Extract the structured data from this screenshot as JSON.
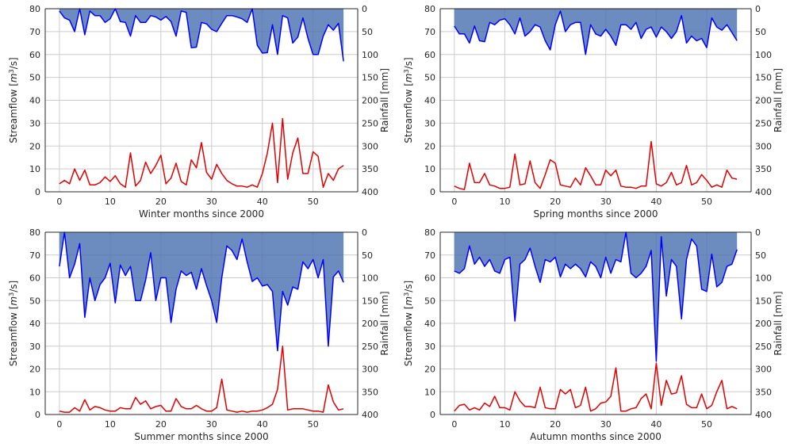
{
  "figure": {
    "title": ""
  },
  "colors": {
    "streamflow": "#0000ff",
    "rainfall_line": "#e00000",
    "rainfall_fill": "#4c72b0",
    "grid": "#cccccc",
    "axis": "#262626"
  },
  "chart_data": [
    {
      "type": "line",
      "xlabel": "Winter months since 2000",
      "ylabel_left": "Streamflow [$m^3$/s]",
      "ylabel_right": "Rainfall [mm]",
      "xlim": [
        -2.8,
        58.8
      ],
      "ylim_left": [
        0,
        80
      ],
      "ylim_right_inverted": [
        400,
        0
      ],
      "xticks": [
        0,
        10,
        20,
        30,
        40,
        50
      ],
      "yticks_left": [
        0,
        10,
        20,
        30,
        40,
        50,
        60,
        70,
        80
      ],
      "yticks_right": [
        0,
        50,
        100,
        150,
        200,
        250,
        300,
        350,
        400
      ],
      "grid": true,
      "series": [
        {
          "axis": "left",
          "color": "red",
          "x": [
            0,
            1,
            2,
            3,
            4,
            5,
            6,
            7,
            8,
            9,
            10,
            11,
            12,
            13,
            14,
            15,
            16,
            17,
            18,
            19,
            20,
            21,
            22,
            23,
            24,
            25,
            26,
            27,
            28,
            29,
            30,
            31,
            32,
            33,
            34,
            35,
            36,
            37,
            38,
            39,
            40,
            41,
            42,
            43,
            44,
            45,
            46,
            47,
            48,
            49,
            50,
            51,
            52,
            53,
            54,
            55,
            56
          ],
          "y": [
            3.5,
            5,
            3.5,
            10,
            5,
            9.5,
            3,
            3,
            4,
            6.5,
            4.5,
            7,
            3.5,
            2,
            17,
            2.5,
            5,
            13,
            8,
            11.5,
            16,
            3.5,
            6,
            12.5,
            4.5,
            3,
            14,
            10.5,
            21.5,
            8.5,
            5.5,
            12,
            8,
            5,
            3.5,
            2.5,
            2.5,
            2,
            3,
            2,
            8,
            17,
            30,
            4,
            32,
            5.5,
            17,
            23.5,
            8,
            8,
            17.5,
            15.5,
            2,
            8,
            5,
            10,
            11.5
          ]
        },
        {
          "axis": "right",
          "color": "blue",
          "fill": "steelblue",
          "x": [
            0,
            1,
            2,
            3,
            4,
            5,
            6,
            7,
            8,
            9,
            10,
            11,
            12,
            13,
            14,
            15,
            16,
            17,
            18,
            19,
            20,
            21,
            22,
            23,
            24,
            25,
            26,
            27,
            28,
            29,
            30,
            31,
            32,
            33,
            34,
            35,
            36,
            37,
            38,
            39,
            40,
            41,
            42,
            43,
            44,
            45,
            46,
            47,
            48,
            49,
            50,
            51,
            52,
            53,
            54,
            55,
            56
          ],
          "y": [
            5,
            20,
            25,
            50,
            0,
            57,
            5,
            15,
            15,
            30,
            22,
            0,
            28,
            30,
            60,
            15,
            30,
            30,
            15,
            18,
            25,
            17,
            28,
            60,
            5,
            8,
            85,
            84,
            30,
            33,
            45,
            50,
            32,
            15,
            15,
            18,
            22,
            30,
            0,
            80,
            97,
            96,
            35,
            100,
            15,
            20,
            75,
            62,
            20,
            65,
            100,
            100,
            60,
            35,
            47,
            32,
            115
          ]
        }
      ]
    },
    {
      "type": "line",
      "xlabel": "Spring months since 2000",
      "ylabel_left": "Streamflow [$m^3$/s]",
      "ylabel_right": "Rainfall [mm]",
      "xlim": [
        -2.8,
        58.8
      ],
      "ylim_left": [
        0,
        80
      ],
      "ylim_right_inverted": [
        400,
        0
      ],
      "xticks": [
        0,
        10,
        20,
        30,
        40,
        50
      ],
      "yticks_left": [
        0,
        10,
        20,
        30,
        40,
        50,
        60,
        70,
        80
      ],
      "yticks_right": [
        0,
        50,
        100,
        150,
        200,
        250,
        300,
        350,
        400
      ],
      "grid": true,
      "series": [
        {
          "axis": "left",
          "color": "red",
          "x": [
            0,
            1,
            2,
            3,
            4,
            5,
            6,
            7,
            8,
            9,
            10,
            11,
            12,
            13,
            14,
            15,
            16,
            17,
            18,
            19,
            20,
            21,
            22,
            23,
            24,
            25,
            26,
            27,
            28,
            29,
            30,
            31,
            32,
            33,
            34,
            35,
            36,
            37,
            38,
            39,
            40,
            41,
            42,
            43,
            44,
            45,
            46,
            47,
            48,
            49,
            50,
            51,
            52,
            53,
            54,
            55,
            56
          ],
          "y": [
            2.5,
            1.5,
            1,
            12.5,
            4,
            4,
            8,
            3,
            2.5,
            1.5,
            1.5,
            2,
            16.5,
            3,
            3.5,
            13.5,
            4,
            1.5,
            7.5,
            14,
            12.5,
            3,
            2.5,
            2,
            6,
            3,
            10.5,
            7,
            3,
            3,
            9.5,
            7,
            9.5,
            2.5,
            2,
            2,
            1.5,
            2.5,
            2.5,
            22,
            3.5,
            2.5,
            4,
            8.5,
            3,
            4,
            11.5,
            3,
            4,
            7.5,
            5,
            2,
            3,
            2,
            9.5,
            6,
            5.5
          ]
        },
        {
          "axis": "right",
          "color": "blue",
          "fill": "steelblue",
          "x": [
            0,
            1,
            2,
            3,
            4,
            5,
            6,
            7,
            8,
            9,
            10,
            11,
            12,
            13,
            14,
            15,
            16,
            17,
            18,
            19,
            20,
            21,
            22,
            23,
            24,
            25,
            26,
            27,
            28,
            29,
            30,
            31,
            32,
            33,
            34,
            35,
            36,
            37,
            38,
            39,
            40,
            41,
            42,
            43,
            44,
            45,
            46,
            47,
            48,
            49,
            50,
            51,
            52,
            53,
            54,
            55,
            56
          ],
          "y": [
            38,
            55,
            55,
            75,
            38,
            70,
            72,
            30,
            35,
            25,
            22,
            35,
            55,
            20,
            60,
            50,
            35,
            40,
            70,
            90,
            35,
            5,
            50,
            35,
            30,
            30,
            100,
            35,
            55,
            60,
            45,
            60,
            80,
            35,
            35,
            45,
            30,
            65,
            45,
            40,
            62,
            40,
            50,
            65,
            50,
            15,
            75,
            60,
            70,
            65,
            85,
            20,
            40,
            47,
            35,
            52,
            70
          ]
        }
      ]
    },
    {
      "type": "line",
      "xlabel": "Summer months since 2000",
      "ylabel_left": "Streamflow [$m^3$/s]",
      "ylabel_right": "Rainfall [mm]",
      "xlim": [
        -2.8,
        58.8
      ],
      "ylim_left": [
        0,
        80
      ],
      "ylim_right_inverted": [
        400,
        0
      ],
      "xticks": [
        0,
        10,
        20,
        30,
        40,
        50
      ],
      "yticks_left": [
        0,
        10,
        20,
        30,
        40,
        50,
        60,
        70,
        80
      ],
      "yticks_right": [
        0,
        50,
        100,
        150,
        200,
        250,
        300,
        350,
        400
      ],
      "grid": true,
      "series": [
        {
          "axis": "left",
          "color": "red",
          "x": [
            0,
            1,
            2,
            3,
            4,
            5,
            6,
            7,
            8,
            9,
            10,
            11,
            12,
            13,
            14,
            15,
            16,
            17,
            18,
            19,
            20,
            21,
            22,
            23,
            24,
            25,
            26,
            27,
            28,
            29,
            30,
            31,
            32,
            33,
            34,
            35,
            36,
            37,
            38,
            39,
            40,
            41,
            42,
            43,
            44,
            45,
            46,
            47,
            48,
            49,
            50,
            51,
            52,
            53,
            54,
            55,
            56
          ],
          "y": [
            1.5,
            1,
            1,
            3,
            1.5,
            6.5,
            2,
            3.5,
            3,
            2,
            1.5,
            1.5,
            3,
            2.5,
            2.5,
            7.5,
            4.5,
            6,
            2.5,
            3.5,
            4,
            1.5,
            1.5,
            7,
            3.5,
            2.5,
            2.5,
            4,
            2.5,
            1.5,
            1.5,
            3,
            15.5,
            2,
            1.5,
            1,
            1.5,
            1,
            1.5,
            1.5,
            2,
            3,
            4.5,
            11,
            30,
            2,
            2.5,
            2.5,
            2.5,
            2,
            1.5,
            1.5,
            1,
            13,
            5.5,
            2,
            2.5
          ]
        },
        {
          "axis": "right",
          "color": "blue",
          "fill": "steelblue",
          "x": [
            0,
            1,
            2,
            3,
            4,
            5,
            6,
            7,
            8,
            9,
            10,
            11,
            12,
            13,
            14,
            15,
            16,
            17,
            18,
            19,
            20,
            21,
            22,
            23,
            24,
            25,
            26,
            27,
            28,
            29,
            30,
            31,
            32,
            33,
            34,
            35,
            36,
            37,
            38,
            39,
            40,
            41,
            42,
            43,
            44,
            45,
            46,
            47,
            48,
            49,
            50,
            51,
            52,
            53,
            54,
            55,
            56
          ],
          "y": [
            75,
            0,
            100,
            70,
            25,
            187,
            100,
            150,
            115,
            100,
            68,
            155,
            72,
            95,
            75,
            150,
            150,
            105,
            45,
            150,
            100,
            100,
            198,
            125,
            85,
            95,
            88,
            125,
            80,
            117,
            150,
            198,
            100,
            30,
            40,
            60,
            15,
            65,
            108,
            100,
            118,
            115,
            130,
            260,
            130,
            160,
            120,
            125,
            65,
            80,
            60,
            100,
            60,
            250,
            98,
            85,
            110
          ]
        }
      ]
    },
    {
      "type": "line",
      "xlabel": "Autumn months since 2000",
      "ylabel_left": "Streamflow [$m^3$/s]",
      "ylabel_right": "Rainfall [mm]",
      "xlim": [
        -2.8,
        58.8
      ],
      "ylim_left": [
        0,
        80
      ],
      "ylim_right_inverted": [
        400,
        0
      ],
      "xticks": [
        0,
        10,
        20,
        30,
        40,
        50
      ],
      "yticks_left": [
        0,
        10,
        20,
        30,
        40,
        50,
        60,
        70,
        80
      ],
      "yticks_right": [
        0,
        50,
        100,
        150,
        200,
        250,
        300,
        350,
        400
      ],
      "grid": true,
      "series": [
        {
          "axis": "left",
          "color": "red",
          "x": [
            0,
            1,
            2,
            3,
            4,
            5,
            6,
            7,
            8,
            9,
            10,
            11,
            12,
            13,
            14,
            15,
            16,
            17,
            18,
            19,
            20,
            21,
            22,
            23,
            24,
            25,
            26,
            27,
            28,
            29,
            30,
            31,
            32,
            33,
            34,
            35,
            36,
            37,
            38,
            39,
            40,
            41,
            42,
            43,
            44,
            45,
            46,
            47,
            48,
            49,
            50,
            51,
            52,
            53,
            54,
            55,
            56
          ],
          "y": [
            1.5,
            4,
            4.5,
            2,
            3,
            2,
            5,
            3.5,
            8,
            3,
            3,
            2,
            10,
            6,
            3.5,
            3.5,
            3,
            12,
            3,
            2.5,
            2.5,
            11,
            9,
            11,
            3,
            4,
            12,
            1.5,
            2.5,
            5,
            5.5,
            8,
            20.5,
            1.5,
            1.5,
            2.5,
            3,
            7,
            9,
            2.5,
            22.5,
            4,
            15,
            9,
            9.5,
            17,
            4.5,
            3,
            3,
            9,
            2.5,
            4,
            10,
            15,
            2.5,
            3.5,
            2.5
          ]
        },
        {
          "axis": "right",
          "color": "blue",
          "fill": "steelblue",
          "x": [
            0,
            1,
            2,
            3,
            4,
            5,
            6,
            7,
            8,
            9,
            10,
            11,
            12,
            13,
            14,
            15,
            16,
            17,
            18,
            19,
            20,
            21,
            22,
            23,
            24,
            25,
            26,
            27,
            28,
            29,
            30,
            31,
            32,
            33,
            34,
            35,
            36,
            37,
            38,
            39,
            40,
            41,
            42,
            43,
            44,
            45,
            46,
            47,
            48,
            49,
            50,
            51,
            52,
            53,
            54,
            55,
            56
          ],
          "y": [
            85,
            90,
            80,
            30,
            70,
            55,
            75,
            60,
            85,
            90,
            60,
            55,
            195,
            70,
            60,
            35,
            75,
            110,
            60,
            65,
            55,
            98,
            70,
            80,
            70,
            80,
            98,
            65,
            75,
            100,
            55,
            90,
            60,
            65,
            0,
            90,
            100,
            90,
            75,
            40,
            283,
            10,
            140,
            60,
            75,
            190,
            60,
            15,
            30,
            125,
            130,
            48,
            120,
            110,
            75,
            70,
            38
          ]
        }
      ]
    }
  ]
}
